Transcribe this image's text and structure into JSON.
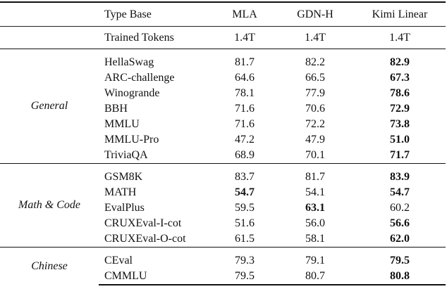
{
  "header": {
    "type_base": "Type Base",
    "columns": [
      "MLA",
      "GDN-H",
      "Kimi Linear"
    ]
  },
  "trained_tokens": {
    "label": "Trained Tokens",
    "values": [
      "1.4T",
      "1.4T",
      "1.4T"
    ]
  },
  "groups": [
    {
      "name": "General",
      "rows": [
        {
          "task": "HellaSwag",
          "values": [
            "81.7",
            "82.2",
            "82.9"
          ],
          "best": [
            false,
            false,
            true
          ]
        },
        {
          "task": "ARC-challenge",
          "values": [
            "64.6",
            "66.5",
            "67.3"
          ],
          "best": [
            false,
            false,
            true
          ]
        },
        {
          "task": "Winogrande",
          "values": [
            "78.1",
            "77.9",
            "78.6"
          ],
          "best": [
            false,
            false,
            true
          ]
        },
        {
          "task": "BBH",
          "values": [
            "71.6",
            "70.6",
            "72.9"
          ],
          "best": [
            false,
            false,
            true
          ]
        },
        {
          "task": "MMLU",
          "values": [
            "71.6",
            "72.2",
            "73.8"
          ],
          "best": [
            false,
            false,
            true
          ]
        },
        {
          "task": "MMLU-Pro",
          "values": [
            "47.2",
            "47.9",
            "51.0"
          ],
          "best": [
            false,
            false,
            true
          ]
        },
        {
          "task": "TriviaQA",
          "values": [
            "68.9",
            "70.1",
            "71.7"
          ],
          "best": [
            false,
            false,
            true
          ]
        }
      ]
    },
    {
      "name": "Math & Code",
      "rows": [
        {
          "task": "GSM8K",
          "values": [
            "83.7",
            "81.7",
            "83.9"
          ],
          "best": [
            false,
            false,
            true
          ]
        },
        {
          "task": "MATH",
          "values": [
            "54.7",
            "54.1",
            "54.7"
          ],
          "best": [
            true,
            false,
            true
          ]
        },
        {
          "task": "EvalPlus",
          "values": [
            "59.5",
            "63.1",
            "60.2"
          ],
          "best": [
            false,
            true,
            false
          ]
        },
        {
          "task": "CRUXEval-I-cot",
          "values": [
            "51.6",
            "56.0",
            "56.6"
          ],
          "best": [
            false,
            false,
            true
          ]
        },
        {
          "task": "CRUXEval-O-cot",
          "values": [
            "61.5",
            "58.1",
            "62.0"
          ],
          "best": [
            false,
            false,
            true
          ]
        }
      ]
    },
    {
      "name": "Chinese",
      "rows": [
        {
          "task": "CEval",
          "values": [
            "79.3",
            "79.1",
            "79.5"
          ],
          "best": [
            false,
            false,
            true
          ]
        },
        {
          "task": "CMMLU",
          "values": [
            "79.5",
            "80.7",
            "80.8"
          ],
          "best": [
            false,
            false,
            true
          ]
        }
      ]
    }
  ]
}
